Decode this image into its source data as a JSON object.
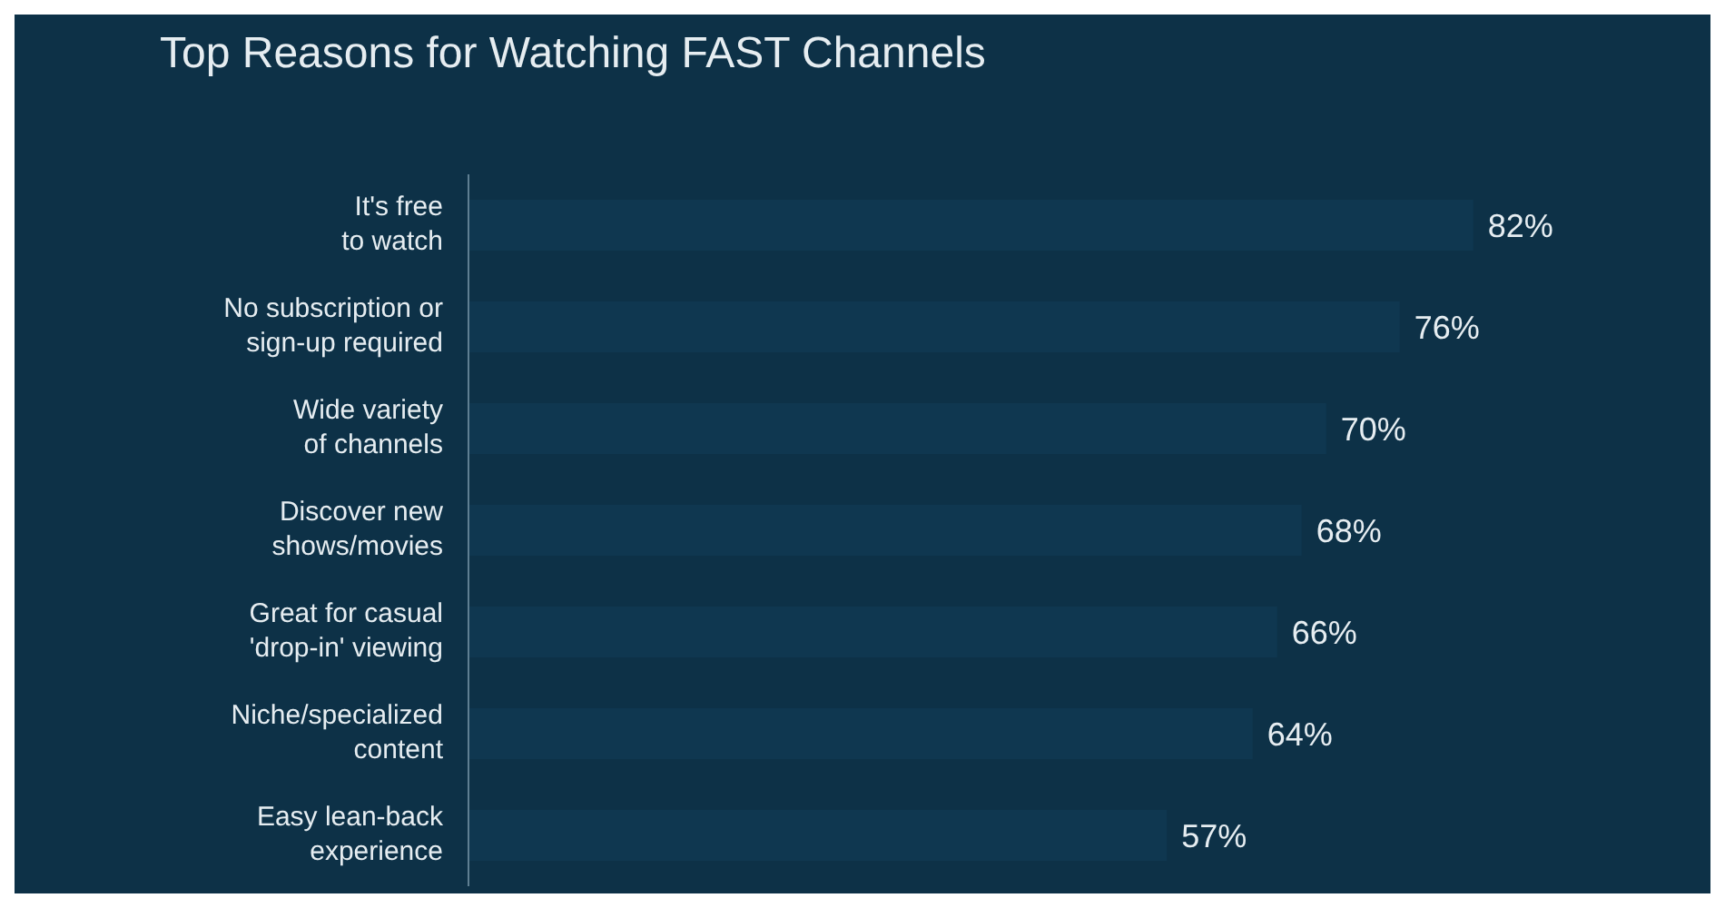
{
  "chart_data": {
    "type": "bar",
    "orientation": "horizontal",
    "title": "Top Reasons for Watching FAST Channels",
    "categories": [
      "It's free\nto watch",
      "No subscription or\nsign-up required",
      "Wide variety\nof channels",
      "Discover new\nshows/movies",
      "Great for casual\n'drop-in' viewing",
      "Niche/specialized\ncontent",
      "Easy lean-back\nexperience"
    ],
    "values": [
      82,
      76,
      70,
      68,
      66,
      64,
      57
    ],
    "value_labels": [
      "82%",
      "76%",
      "70%",
      "68%",
      "66%",
      "64%",
      "57%"
    ],
    "color": "#0f3750",
    "tick_labels": "y"
  }
}
